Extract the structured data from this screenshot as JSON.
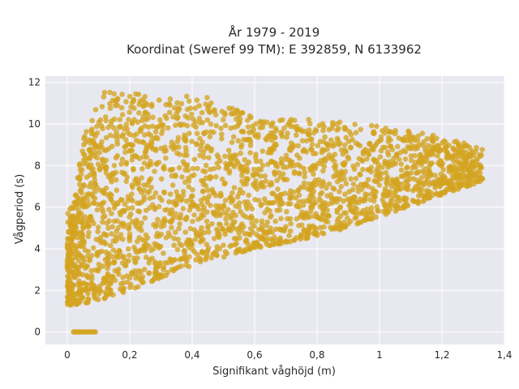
{
  "chart_data": {
    "type": "scatter",
    "title_line1": "År 1979 - 2019",
    "title_line2": "Koordinat (Sweref 99 TM): E 392859, N 6133962",
    "xlabel": "Signifikant våghöjd (m)",
    "ylabel": "Vågperiod (s)",
    "xlim": [
      -0.07,
      1.4
    ],
    "ylim": [
      -0.6,
      12.3
    ],
    "xticks": [
      0,
      0.2,
      0.4,
      0.6,
      0.8,
      1,
      1.2,
      1.4
    ],
    "xtick_labels": [
      "0",
      "0,2",
      "0,4",
      "0,6",
      "0,8",
      "1",
      "1,2",
      "1,4"
    ],
    "yticks": [
      0,
      2,
      4,
      6,
      8,
      10,
      12
    ],
    "ytick_labels": [
      "0",
      "2",
      "4",
      "6",
      "8",
      "10",
      "12"
    ],
    "grid": true,
    "marker_color": "#D4A420",
    "background_color": "#E8E8F0",
    "point_cloud": {
      "description_hint": "dense cloud; lower boundary ~1.2 s at Hs 0.05 rising to ~7.0 s at Hs 1.3; upper scatter up to ~11.5 s; cluster of zero-period points between Hs 0.02 and 0.09",
      "x_range": [
        0.0,
        1.33
      ],
      "y_range": [
        0,
        11.7
      ],
      "lower_bound_points": [
        [
          0.02,
          1.3
        ],
        [
          0.1,
          1.5
        ],
        [
          0.2,
          2.0
        ],
        [
          0.4,
          3.2
        ],
        [
          0.6,
          4.0
        ],
        [
          0.8,
          4.6
        ],
        [
          1.0,
          5.5
        ],
        [
          1.2,
          6.6
        ],
        [
          1.32,
          7.2
        ]
      ],
      "upper_bound_points": [
        [
          0.02,
          6.0
        ],
        [
          0.05,
          9.5
        ],
        [
          0.12,
          11.6
        ],
        [
          0.3,
          11.4
        ],
        [
          0.45,
          11.3
        ],
        [
          0.6,
          10.3
        ],
        [
          0.8,
          10.2
        ],
        [
          1.0,
          9.9
        ],
        [
          1.2,
          9.4
        ],
        [
          1.32,
          8.9
        ]
      ],
      "zero_period_x_range": [
        0.02,
        0.09
      ]
    }
  }
}
